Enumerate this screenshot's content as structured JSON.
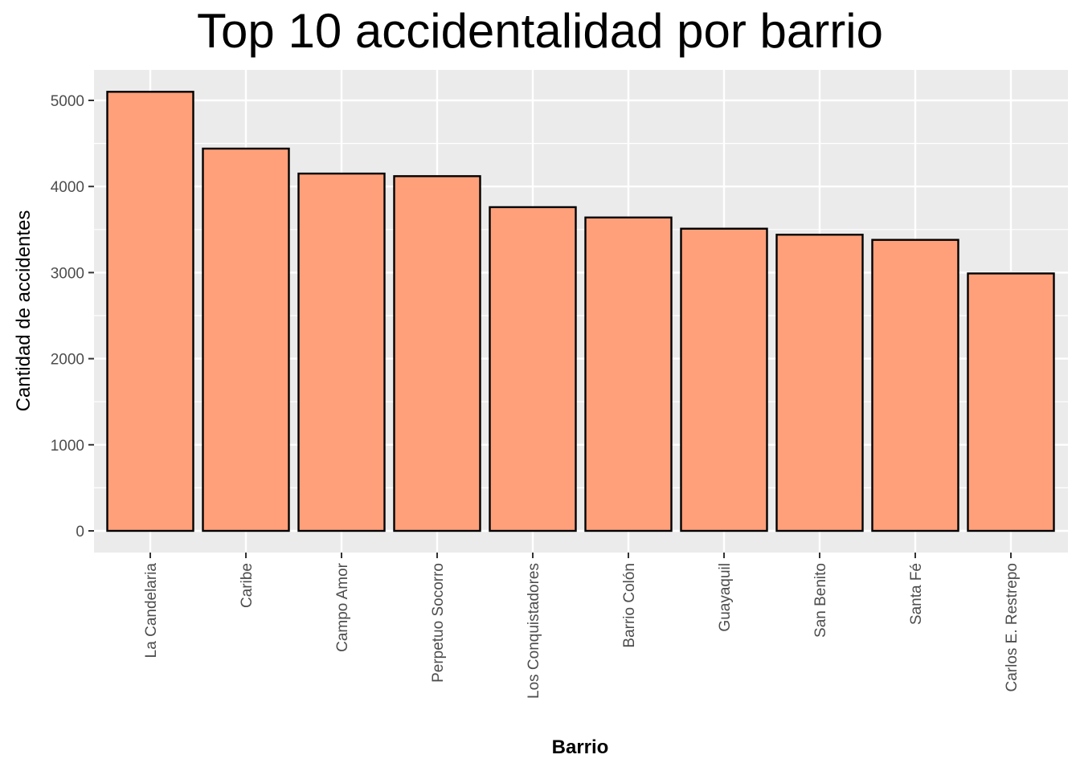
{
  "chart_data": {
    "type": "bar",
    "title": "Top 10 accidentalidad por barrio",
    "xlabel": "Barrio",
    "ylabel": "Cantidad de accidentes",
    "categories": [
      "La Candelaria",
      "Caribe",
      "Campo Amor",
      "Perpetuo Socorro",
      "Los Conquistadores",
      "Barrio Colón",
      "Guayaquil",
      "San Benito",
      "Santa Fé",
      "Carlos E. Restrepo"
    ],
    "values": [
      5100,
      4440,
      4150,
      4120,
      3760,
      3640,
      3510,
      3440,
      3380,
      2990
    ],
    "yticks": [
      "0",
      "1000",
      "2000",
      "3000",
      "4000",
      "5000"
    ],
    "ylim": [
      -250,
      5355
    ],
    "grid": true,
    "bar_fill": "#FFA07A",
    "bar_stroke": "#000000",
    "panel_background": "#EBEBEB"
  }
}
